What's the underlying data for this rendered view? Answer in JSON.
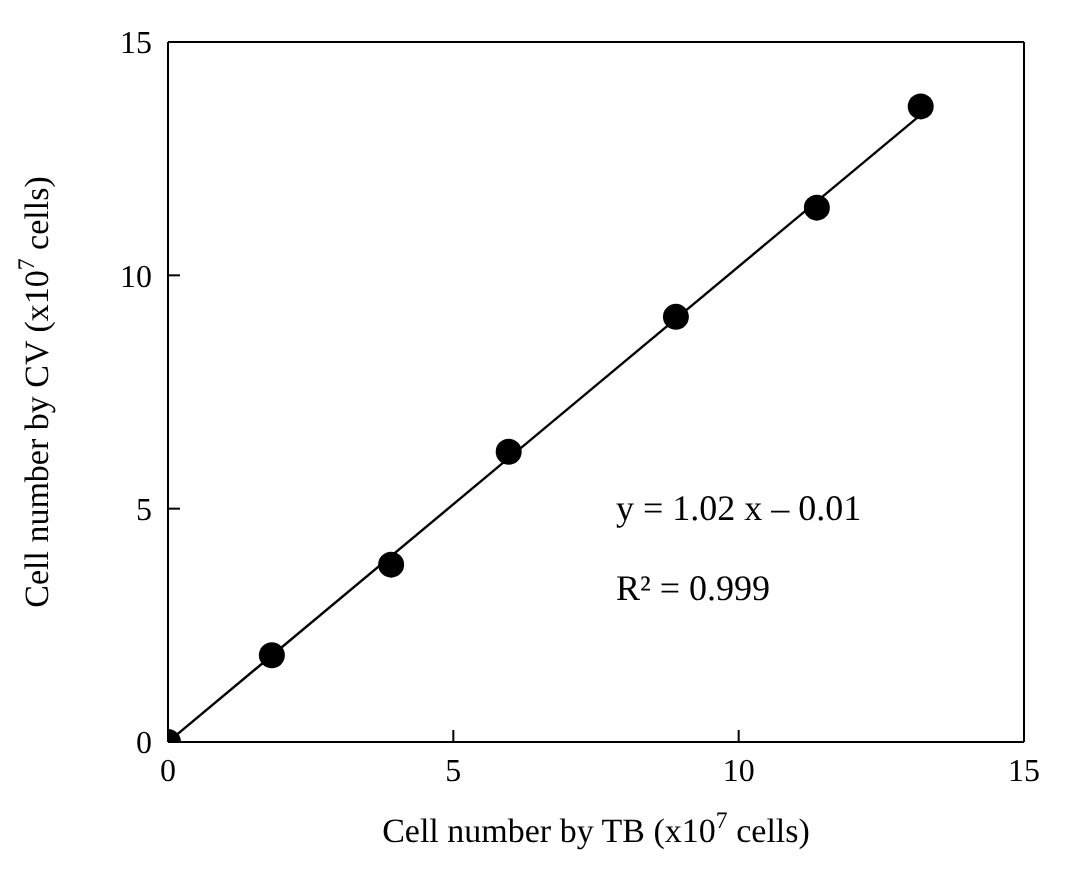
{
  "chart_data": {
    "type": "scatter",
    "xlabel": "Cell number by TB (x10$^{7}$ cells)",
    "ylabel": "Cell number by CV (x10$^{7}$ cells)",
    "x": [
      0,
      1.82,
      3.91,
      5.97,
      8.9,
      11.37,
      13.19
    ],
    "series": [
      {
        "color": "#000000",
        "marker": "circle",
        "values": [
          0,
          1.86,
          3.8,
          6.22,
          9.11,
          11.45,
          13.62
        ]
      },
      {
        "type": "line",
        "color": "#000000",
        "marker": "none",
        "x": [
          0,
          13.2
        ],
        "values": [
          0,
          13.45
        ]
      }
    ],
    "xlim": [
      0,
      15
    ],
    "ylim": [
      0,
      15
    ],
    "xticks": [
      0,
      5,
      10,
      15
    ],
    "yticks": [
      0,
      5,
      10,
      15
    ],
    "annotations": [
      "y = 1.02 x – 0.01",
      "R² = 0.999"
    ]
  }
}
